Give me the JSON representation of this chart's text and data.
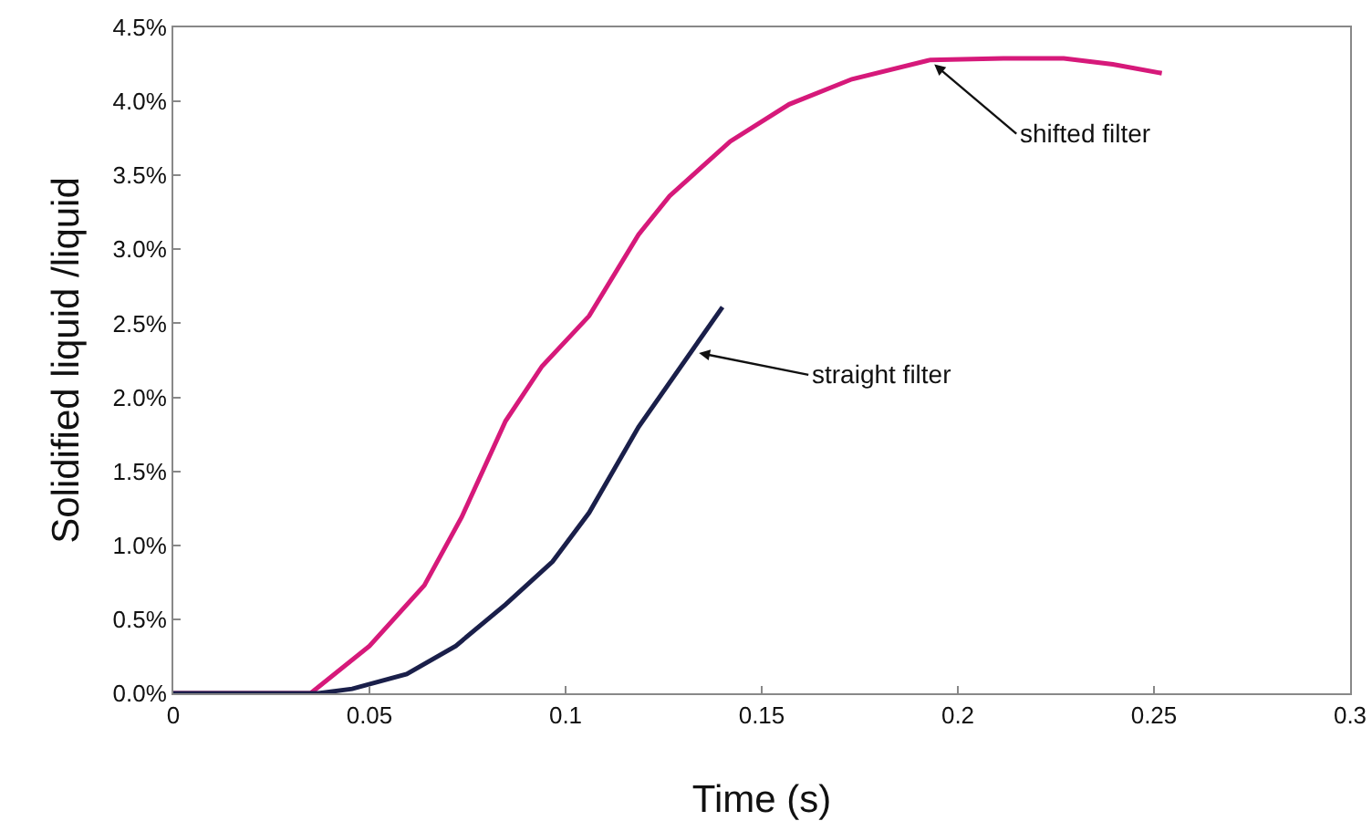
{
  "chart_data": {
    "type": "line",
    "xlabel": "Time (s)",
    "ylabel": "Solidified liquid /liquid",
    "xlim": [
      0,
      0.3
    ],
    "xticks": [
      0,
      0.05,
      0.1,
      0.15,
      0.2,
      0.25,
      0.3
    ],
    "ylim": [
      0,
      4.5
    ],
    "yticks": [
      {
        "value": 0,
        "label": "0.0%"
      },
      {
        "value": 0.5,
        "label": "0.5%"
      },
      {
        "value": 1,
        "label": "1.0%"
      },
      {
        "value": 1.5,
        "label": "1.5%"
      },
      {
        "value": 2,
        "label": "2.0%"
      },
      {
        "value": 2.5,
        "label": "2.5%"
      },
      {
        "value": 3,
        "label": "3.0%"
      },
      {
        "value": 3.5,
        "label": "3.5%"
      },
      {
        "value": 4,
        "label": "4.0%"
      },
      {
        "value": 4.5,
        "label": "4.5%"
      }
    ],
    "grid": false,
    "marker": "none",
    "line_style": "solid",
    "series": [
      {
        "color": "#d6197a",
        "x": [
          0,
          0.035,
          0.05,
          0.064,
          0.0735,
          0.0847,
          0.094,
          0.106,
          0.1186,
          0.1265,
          0.142,
          0.157,
          0.173,
          0.193,
          0.2116,
          0.227,
          0.2395,
          0.252
        ],
        "values": [
          0,
          0,
          0.32,
          0.73,
          1.19,
          1.84,
          2.21,
          2.55,
          3.1,
          3.36,
          3.73,
          3.98,
          4.15,
          4.28,
          4.29,
          4.29,
          4.25,
          4.19
        ]
      },
      {
        "color": "#1a1f4a",
        "x": [
          0,
          0.037,
          0.0456,
          0.0595,
          0.072,
          0.0847,
          0.0967,
          0.106,
          0.1186,
          0.14
        ],
        "values": [
          0,
          0,
          0.03,
          0.13,
          0.32,
          0.6,
          0.89,
          1.22,
          1.8,
          2.61
        ]
      }
    ],
    "annotations": [
      {
        "text": "shifted filter",
        "x": 0.194,
        "y": 4.25
      },
      {
        "text": "straight filter",
        "x": 0.134,
        "y": 2.3
      }
    ]
  }
}
